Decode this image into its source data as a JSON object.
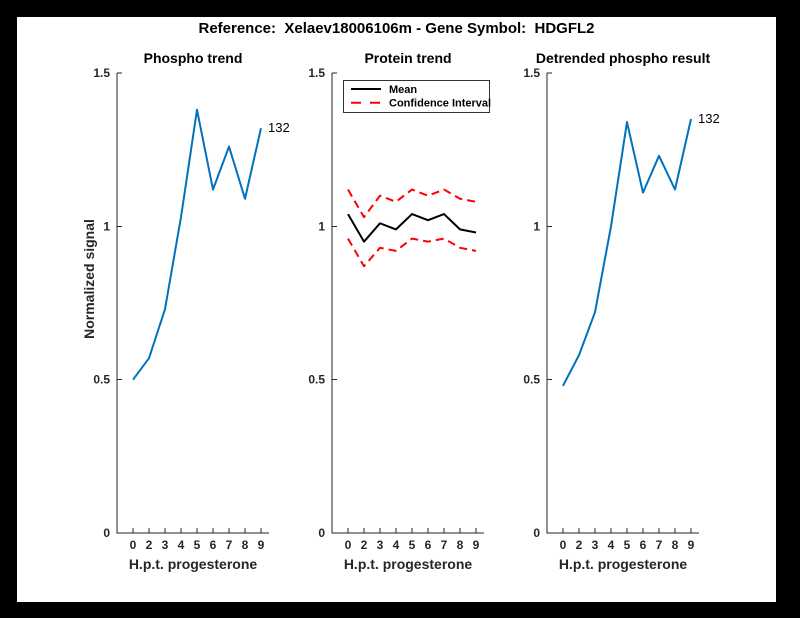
{
  "figure": {
    "title": "Reference:  Xelaev18006106m - Gene Symbol:  HDGFL2",
    "ylabel": "Normalized signal",
    "colors": {
      "frame": "#000000",
      "background": "#FFFFFF",
      "axis": "#262626",
      "blue": "#0072BD",
      "red": "#FF0000",
      "black": "#000000"
    }
  },
  "chart_data": [
    {
      "type": "line",
      "title": "Phospho trend",
      "xlabel": "H.p.t. progesterone",
      "ylabel": "Normalized signal",
      "x_tick_labels": [
        "0",
        "2",
        "3",
        "4",
        "5",
        "6",
        "7",
        "8",
        "9"
      ],
      "y_ticks": [
        "0",
        "0.5",
        "1",
        "1.5"
      ],
      "ylim": [
        0,
        1.5
      ],
      "grid": false,
      "end_label": "132",
      "series": [
        {
          "name": "Phospho",
          "color": "#0072BD",
          "style": "solid",
          "values": [
            0.5,
            0.57,
            0.73,
            1.03,
            1.38,
            1.12,
            1.26,
            1.09,
            1.32
          ]
        }
      ]
    },
    {
      "type": "line",
      "title": "Protein trend",
      "xlabel": "H.p.t. progesterone",
      "x_tick_labels": [
        "0",
        "2",
        "3",
        "4",
        "5",
        "6",
        "7",
        "8",
        "9"
      ],
      "y_ticks": [
        "0",
        "0.5",
        "1",
        "1.5"
      ],
      "ylim": [
        0,
        1.5
      ],
      "grid": false,
      "legend": {
        "position": "northwest",
        "entries": [
          {
            "label": "Mean",
            "color": "#000000",
            "style": "solid"
          },
          {
            "label": "Confidence Interval",
            "color": "#FF0000",
            "style": "dashed"
          }
        ]
      },
      "series": [
        {
          "name": "Mean",
          "color": "#000000",
          "style": "solid",
          "values": [
            1.04,
            0.95,
            1.01,
            0.99,
            1.04,
            1.02,
            1.04,
            0.99,
            0.98
          ]
        },
        {
          "name": "Confidence Interval upper",
          "color": "#FF0000",
          "style": "dashed",
          "values": [
            1.12,
            1.03,
            1.1,
            1.08,
            1.12,
            1.1,
            1.12,
            1.09,
            1.08
          ]
        },
        {
          "name": "Confidence Interval lower",
          "color": "#FF0000",
          "style": "dashed",
          "values": [
            0.96,
            0.87,
            0.93,
            0.92,
            0.96,
            0.95,
            0.96,
            0.93,
            0.92
          ]
        }
      ]
    },
    {
      "type": "line",
      "title": "Detrended phospho result",
      "xlabel": "H.p.t. progesterone",
      "x_tick_labels": [
        "0",
        "2",
        "3",
        "4",
        "5",
        "6",
        "7",
        "8",
        "9"
      ],
      "y_ticks": [
        "0",
        "0.5",
        "1",
        "1.5"
      ],
      "ylim": [
        0,
        1.5
      ],
      "grid": false,
      "end_label": "132",
      "series": [
        {
          "name": "Detrended phospho",
          "color": "#0072BD",
          "style": "solid",
          "values": [
            0.48,
            0.58,
            0.72,
            1.0,
            1.34,
            1.11,
            1.23,
            1.12,
            1.35
          ]
        }
      ]
    }
  ]
}
